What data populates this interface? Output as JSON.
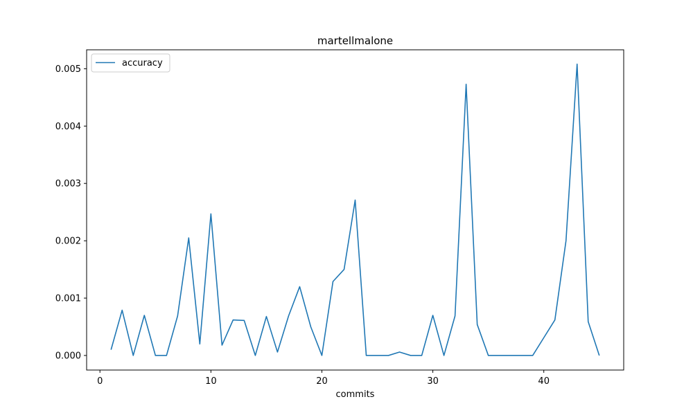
{
  "chart_data": {
    "type": "line",
    "title": "martellmalone",
    "xlabel": "commits",
    "ylabel": "",
    "xlim": [
      -1.2,
      47.2
    ],
    "ylim": [
      -0.000254,
      0.00533
    ],
    "xticks": [
      0,
      10,
      20,
      30,
      40
    ],
    "xtick_labels": [
      "0",
      "10",
      "20",
      "30",
      "40"
    ],
    "yticks": [
      0,
      0.001,
      0.002,
      0.003,
      0.004,
      0.005
    ],
    "ytick_labels": [
      "0.000",
      "0.001",
      "0.002",
      "0.003",
      "0.004",
      "0.005"
    ],
    "grid": false,
    "legend_position": "upper-left",
    "series": [
      {
        "name": "accuracy",
        "color": "#1f77b4",
        "x": [
          1,
          2,
          3,
          4,
          5,
          6,
          7,
          8,
          9,
          10,
          11,
          12,
          13,
          14,
          15,
          16,
          17,
          18,
          19,
          20,
          21,
          22,
          23,
          24,
          25,
          26,
          27,
          28,
          29,
          30,
          31,
          32,
          33,
          34,
          35,
          36,
          37,
          38,
          39,
          40,
          41,
          42,
          43,
          44,
          45
        ],
        "y": [
          0.0001,
          0.00079,
          0.0,
          0.0007,
          0.0,
          0.0,
          0.00069,
          0.00205,
          0.0002,
          0.00247,
          0.00018,
          0.00062,
          0.00061,
          0.0,
          0.00068,
          6e-05,
          0.00069,
          0.0012,
          0.0005,
          0.0,
          0.00129,
          0.0015,
          0.00271,
          0.0,
          0.0,
          0.0,
          6e-05,
          0.0,
          0.0,
          0.0007,
          0.0,
          0.00069,
          0.00473,
          0.00054,
          0.0,
          0.0,
          0.0,
          0.0,
          0.0,
          0.00031,
          0.00062,
          0.002,
          0.00508,
          0.00059,
          0.0
        ]
      }
    ]
  }
}
